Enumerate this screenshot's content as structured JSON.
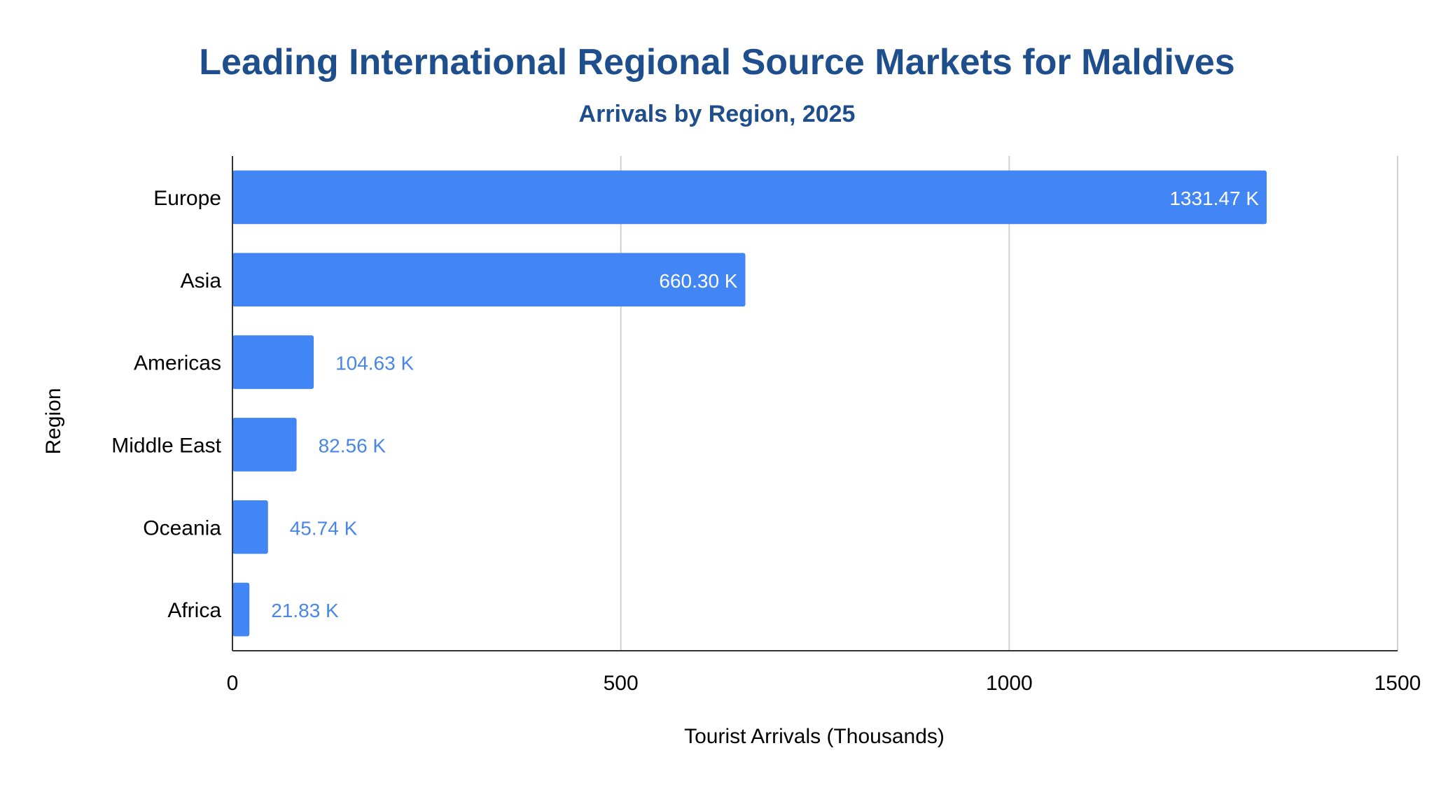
{
  "chart_data": {
    "type": "bar",
    "orientation": "horizontal",
    "title": "Leading International Regional Source Markets for Maldives",
    "subtitle": "Arrivals by Region, 2025",
    "xlabel": "Tourist Arrivals (Thousands)",
    "ylabel": "Region",
    "categories": [
      "Europe",
      "Asia",
      "Americas",
      "Middle East",
      "Oceania",
      "Africa"
    ],
    "values": [
      1331.47,
      660.3,
      104.63,
      82.56,
      45.74,
      21.83
    ],
    "data_labels": [
      "1331.47 K",
      "660.30 K",
      "104.63 K",
      "82.56 K",
      "45.74 K",
      "21.83 K"
    ],
    "xlim": [
      0,
      1500
    ],
    "xticks": [
      "0",
      "500",
      "1000",
      "1500"
    ],
    "grid": true,
    "colors": {
      "bar": "#4285f4",
      "title": "#1f4e8c",
      "label_outside": "#4a86e8",
      "label_inside": "#ffffff",
      "grid": "#d0d0d0",
      "axis": "#333333"
    }
  }
}
